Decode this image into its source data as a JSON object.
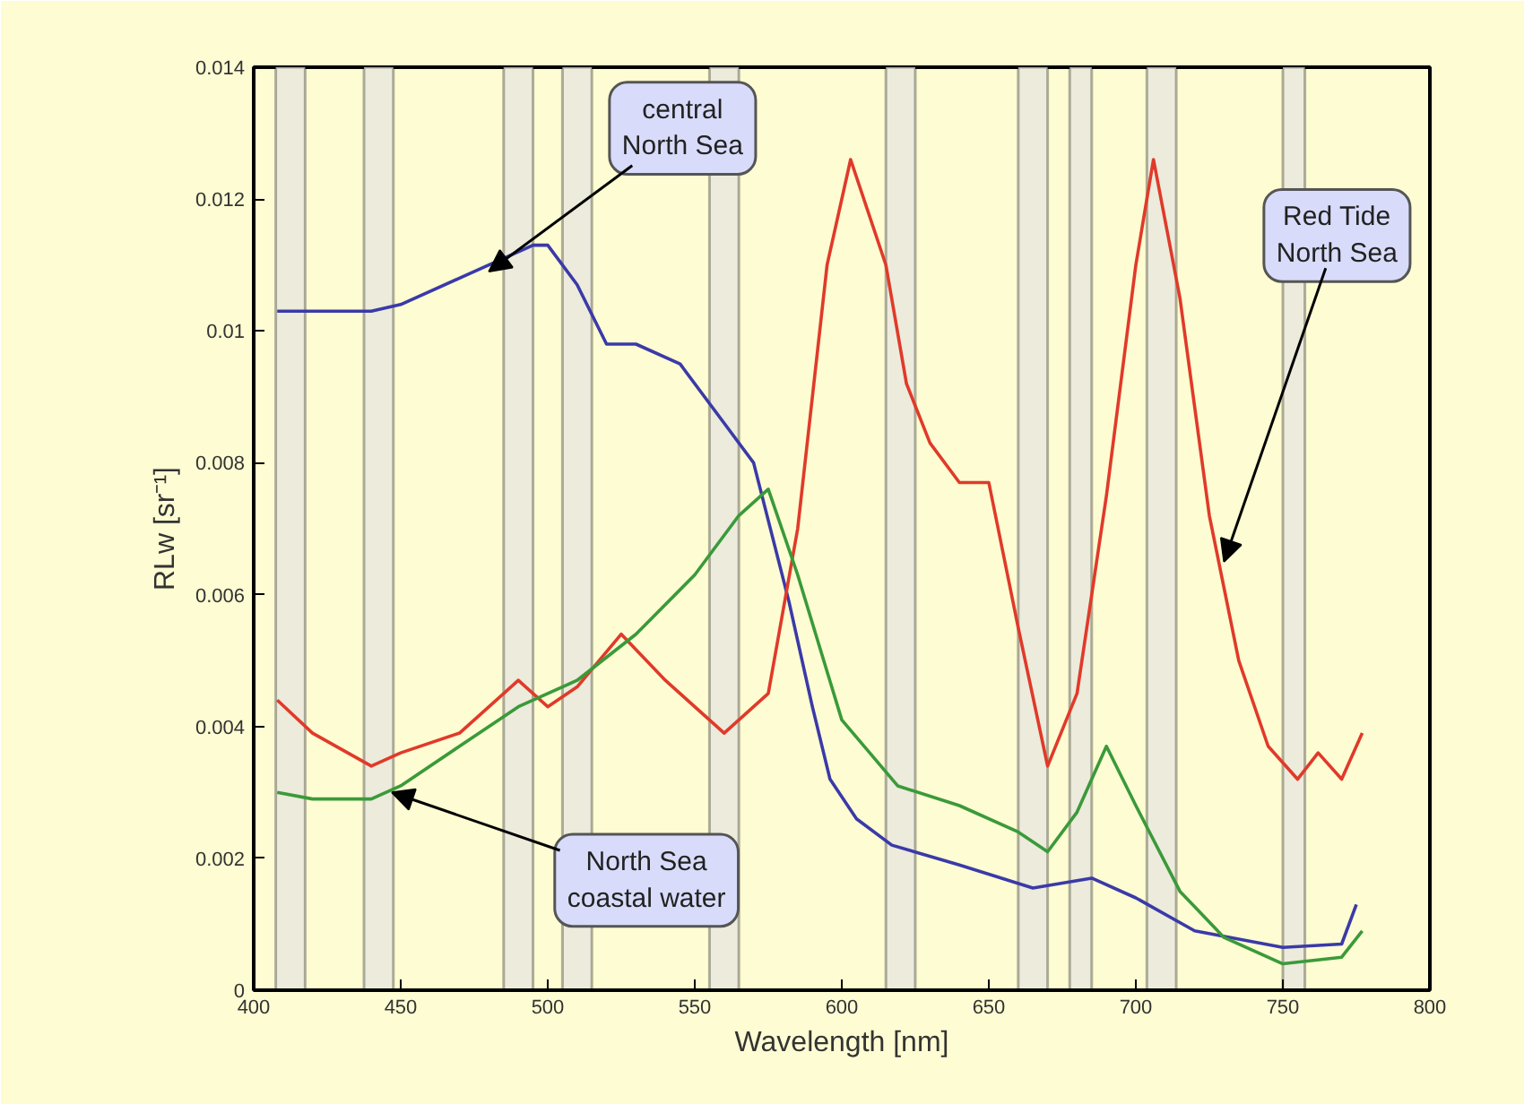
{
  "chart_data": {
    "type": "line",
    "xlabel": "Wavelength [nm]",
    "ylabel": "RLw [sr⁻¹]",
    "xlim": [
      400,
      800
    ],
    "ylim": [
      0,
      0.014
    ],
    "xticks": [
      400,
      450,
      500,
      550,
      600,
      650,
      700,
      750,
      800
    ],
    "yticks": [
      0,
      0.002,
      0.004,
      0.006,
      0.008,
      0.01,
      0.012,
      0.014
    ],
    "grid": false,
    "series": [
      {
        "color": "#3a3aa8",
        "x": [
          408,
          420,
          440,
          450,
          470,
          480,
          495,
          500,
          510,
          520,
          530,
          545,
          560,
          570,
          582,
          590,
          596,
          605,
          617,
          640,
          665,
          685,
          700,
          720,
          750,
          770,
          775
        ],
        "values": [
          0.0103,
          0.0103,
          0.0103,
          0.0104,
          0.0108,
          0.011,
          0.0113,
          0.0113,
          0.0107,
          0.0098,
          0.0098,
          0.0095,
          0.0086,
          0.008,
          0.0059,
          0.0043,
          0.0032,
          0.0026,
          0.0022,
          0.0019,
          0.00155,
          0.0017,
          0.0014,
          0.0009,
          0.00065,
          0.0007,
          0.0013
        ]
      },
      {
        "color": "#e03a2a",
        "x": [
          408,
          420,
          440,
          450,
          470,
          490,
          500,
          510,
          525,
          540,
          560,
          575,
          585,
          595,
          603,
          615,
          622,
          630,
          640,
          650,
          660,
          670,
          680,
          690,
          700,
          706,
          715,
          725,
          735,
          745,
          755,
          762,
          770,
          777
        ],
        "values": [
          0.0044,
          0.0039,
          0.0034,
          0.0036,
          0.0039,
          0.0047,
          0.0043,
          0.0046,
          0.0054,
          0.0047,
          0.0039,
          0.0045,
          0.007,
          0.011,
          0.0126,
          0.011,
          0.0092,
          0.0083,
          0.0077,
          0.0077,
          0.0055,
          0.0034,
          0.0045,
          0.0075,
          0.011,
          0.0126,
          0.0105,
          0.0072,
          0.005,
          0.0037,
          0.0032,
          0.0036,
          0.0032,
          0.0039
        ]
      },
      {
        "color": "#3a9a3a",
        "x": [
          408,
          420,
          440,
          450,
          470,
          490,
          510,
          530,
          550,
          565,
          575,
          585,
          600,
          619,
          640,
          660,
          670,
          680,
          690,
          700,
          715,
          730,
          750,
          770,
          777
        ],
        "values": [
          0.003,
          0.0029,
          0.0029,
          0.0031,
          0.0037,
          0.0043,
          0.0047,
          0.0054,
          0.0063,
          0.0072,
          0.0076,
          0.0063,
          0.0041,
          0.0031,
          0.0028,
          0.0024,
          0.0021,
          0.0027,
          0.0037,
          0.0028,
          0.0015,
          0.0008,
          0.0004,
          0.0005,
          0.0009
        ]
      }
    ],
    "bands": [
      {
        "axis": "x",
        "from": 407.5,
        "to": 417.5,
        "color": "#ecebdc"
      },
      {
        "axis": "x",
        "from": 437.5,
        "to": 447.5,
        "color": "#ecebdc"
      },
      {
        "axis": "x",
        "from": 485,
        "to": 495,
        "color": "#ecebdc"
      },
      {
        "axis": "x",
        "from": 505,
        "to": 515,
        "color": "#ecebdc"
      },
      {
        "axis": "x",
        "from": 555,
        "to": 565,
        "color": "#ecebdc"
      },
      {
        "axis": "x",
        "from": 615,
        "to": 625,
        "color": "#ecebdc"
      },
      {
        "axis": "x",
        "from": 660,
        "to": 670,
        "color": "#ecebdc"
      },
      {
        "axis": "x",
        "from": 677.5,
        "to": 685,
        "color": "#ecebdc"
      },
      {
        "axis": "x",
        "from": 703.75,
        "to": 713.75,
        "color": "#ecebdc"
      },
      {
        "axis": "x",
        "from": 750,
        "to": 757.5,
        "color": "#ecebdc"
      }
    ],
    "annotations": [
      {
        "text": "central\nNorth Sea",
        "x": 480,
        "y": 0.0109
      },
      {
        "text": "Red Tide\nNorth Sea",
        "x": 730,
        "y": 0.0065
      },
      {
        "text": "North Sea\ncoastal water",
        "x": 447,
        "y": 0.003
      }
    ]
  }
}
